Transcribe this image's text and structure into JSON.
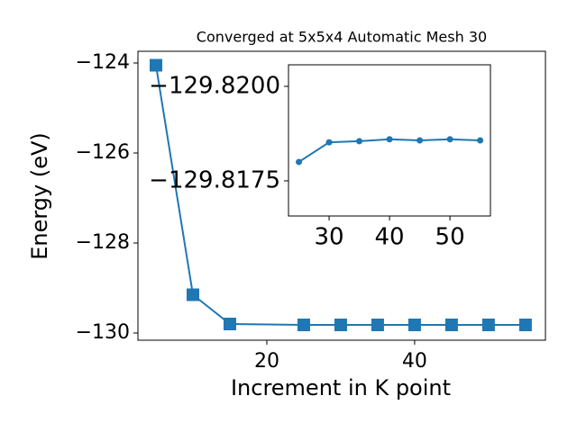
{
  "chart_data": [
    {
      "type": "line",
      "title": "Converged at 5x5x4 Automatic Mesh 30",
      "xlabel": "Increment in K point",
      "ylabel": "Energy (eV)",
      "x": [
        5,
        10,
        15,
        25,
        30,
        35,
        40,
        45,
        50,
        55
      ],
      "series": [
        {
          "color": "#1f77b4",
          "marker": "square",
          "values": [
            -124.05,
            -129.15,
            -129.8,
            -129.82,
            -129.82,
            -129.82,
            -129.82,
            -129.82,
            -129.82,
            -129.82
          ]
        }
      ],
      "xlim": [
        2.56,
        57.7
      ],
      "ylim": [
        -130.16,
        -123.74
      ],
      "xticks": [
        20,
        40
      ],
      "yticks": [
        {
          "value": -124,
          "label": "−124"
        },
        {
          "value": -126,
          "label": "−126"
        },
        {
          "value": -128,
          "label": "−128"
        },
        {
          "value": -130,
          "label": "−130"
        }
      ]
    },
    {
      "type": "line",
      "x": [
        25,
        30,
        35,
        40,
        45,
        50,
        55
      ],
      "series": [
        {
          "color": "#1f77b4",
          "marker": "circle",
          "values": [
            -129.818,
            -129.81852,
            -129.81855,
            -129.8186,
            -129.81857,
            -129.8186,
            -129.81857
          ]
        }
      ],
      "xlim": [
        23.28,
        56.7
      ],
      "ylim": [
        -129.81657,
        -129.82057
      ],
      "xticks": [
        30,
        40,
        50
      ],
      "yticks": [
        {
          "value": -129.82,
          "label": "−129.8200"
        },
        {
          "value": -129.8175,
          "label": "−129.8175"
        }
      ]
    }
  ]
}
